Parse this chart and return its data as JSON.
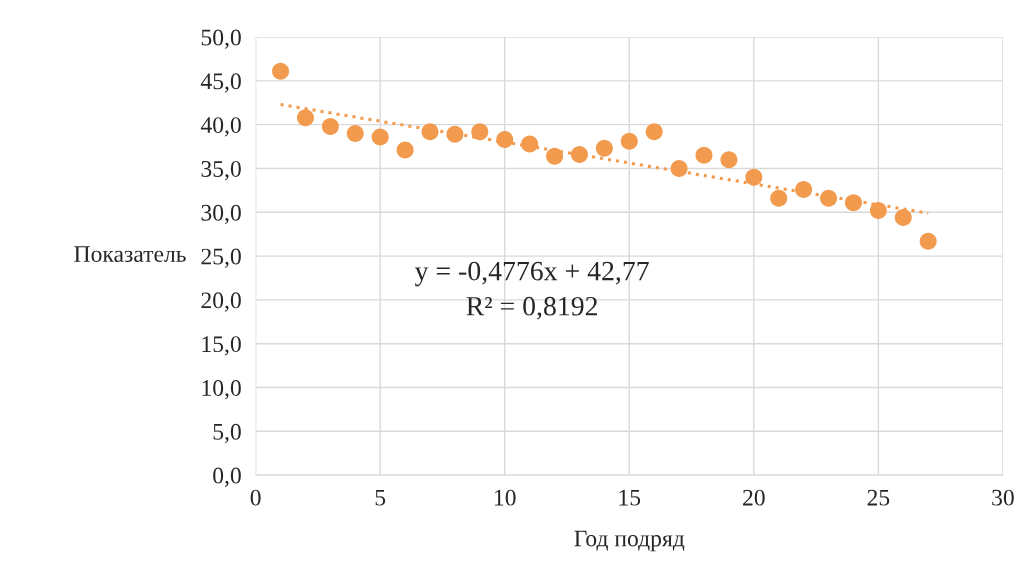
{
  "chart_data": {
    "type": "scatter",
    "xlabel": "Год подряд",
    "ylabel": "Показатель",
    "series": [
      {
        "color": "#f29b4f",
        "marker": "circle",
        "x": [
          1,
          2,
          3,
          4,
          5,
          6,
          7,
          8,
          9,
          10,
          11,
          12,
          13,
          14,
          15,
          16,
          17,
          18,
          19,
          20,
          21,
          22,
          23,
          24,
          25,
          26,
          27
        ],
        "values": [
          46.1,
          40.8,
          39.8,
          39.0,
          38.6,
          37.1,
          39.2,
          38.9,
          39.2,
          38.3,
          37.8,
          36.4,
          36.6,
          37.3,
          38.1,
          39.2,
          35.0,
          36.5,
          36.0,
          34.0,
          31.6,
          32.6,
          31.6,
          31.1,
          30.2,
          29.4,
          26.7
        ]
      },
      {
        "type": "line",
        "color": "#f29b4f",
        "line_style": "dotted",
        "x": [
          1,
          27
        ],
        "values": [
          42.3,
          29.9
        ]
      }
    ],
    "annotations": [
      "y = -0,4776x + 42,77",
      "R² = 0,8192"
    ],
    "xlim": [
      0,
      30
    ],
    "xticks": [
      0,
      5,
      10,
      15,
      20,
      25,
      30
    ],
    "ylim": [
      0,
      50
    ],
    "yticks": [
      {
        "value": 0,
        "label": "0,0"
      },
      {
        "value": 5,
        "label": "5,0"
      },
      {
        "value": 10,
        "label": "10,0"
      },
      {
        "value": 15,
        "label": "15,0"
      },
      {
        "value": 20,
        "label": "20,0"
      },
      {
        "value": 25,
        "label": "25,0"
      },
      {
        "value": 30,
        "label": "30,0"
      },
      {
        "value": 35,
        "label": "35,0"
      },
      {
        "value": 40,
        "label": "40,0"
      },
      {
        "value": 45,
        "label": "45,0"
      },
      {
        "value": 50,
        "label": "50,0"
      }
    ],
    "grid": true,
    "legend": false
  }
}
